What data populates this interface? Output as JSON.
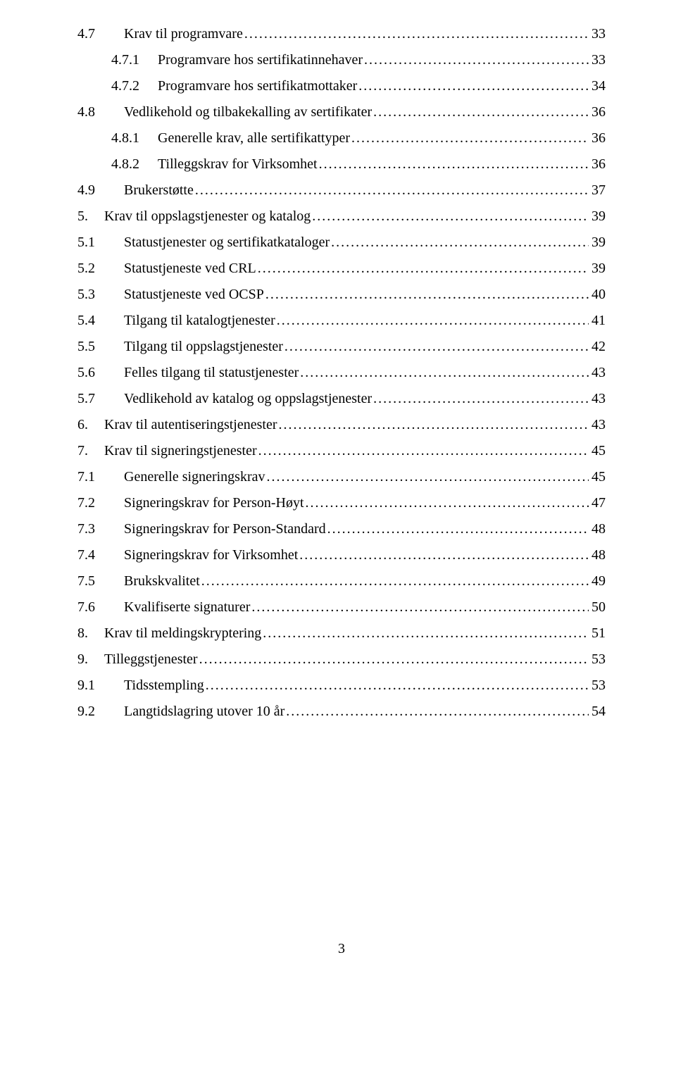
{
  "page_number": "3",
  "toc": [
    {
      "level": "lvl1",
      "num": "4.7",
      "title": "Krav til programvare",
      "page": "33"
    },
    {
      "level": "lvl2",
      "num": "4.7.1",
      "title": "Programvare hos sertifikatinnehaver",
      "page": "33"
    },
    {
      "level": "lvl2",
      "num": "4.7.2",
      "title": "Programvare hos sertifikatmottaker",
      "page": "34"
    },
    {
      "level": "lvl1",
      "num": "4.8",
      "title": "Vedlikehold og tilbakekalling av sertifikater",
      "page": "36"
    },
    {
      "level": "lvl2",
      "num": "4.8.1",
      "title": "Generelle krav, alle sertifikattyper",
      "page": "36"
    },
    {
      "level": "lvl2",
      "num": "4.8.2",
      "title": "Tilleggskrav for Virksomhet",
      "page": "36"
    },
    {
      "level": "lvl1",
      "num": "4.9",
      "title": "Brukerstøtte",
      "page": "37"
    },
    {
      "level": "lvl0",
      "num": "5.",
      "title": "Krav til oppslagstjenester og katalog",
      "page": "39"
    },
    {
      "level": "lvl1",
      "num": "5.1",
      "title": "Statustjenester og sertifikatkataloger",
      "page": "39"
    },
    {
      "level": "lvl1",
      "num": "5.2",
      "title": "Statustjeneste ved CRL",
      "page": "39"
    },
    {
      "level": "lvl1",
      "num": "5.3",
      "title": "Statustjeneste ved OCSP",
      "page": "40"
    },
    {
      "level": "lvl1",
      "num": "5.4",
      "title": "Tilgang til katalogtjenester",
      "page": "41"
    },
    {
      "level": "lvl1",
      "num": "5.5",
      "title": "Tilgang til oppslagstjenester",
      "page": "42"
    },
    {
      "level": "lvl1",
      "num": "5.6",
      "title": "Felles tilgang til statustjenester",
      "page": "43"
    },
    {
      "level": "lvl1",
      "num": "5.7",
      "title": "Vedlikehold av katalog og oppslagstjenester",
      "page": "43"
    },
    {
      "level": "lvl0",
      "num": "6.",
      "title": "Krav til autentiseringstjenester",
      "page": "43"
    },
    {
      "level": "lvl0",
      "num": "7.",
      "title": "Krav til signeringstjenester",
      "page": "45"
    },
    {
      "level": "lvl1",
      "num": "7.1",
      "title": "Generelle signeringskrav",
      "page": "45"
    },
    {
      "level": "lvl1",
      "num": "7.2",
      "title": "Signeringskrav for Person-Høyt",
      "page": "47"
    },
    {
      "level": "lvl1",
      "num": "7.3",
      "title": "Signeringskrav for Person-Standard",
      "page": "48"
    },
    {
      "level": "lvl1",
      "num": "7.4",
      "title": "Signeringskrav for Virksomhet",
      "page": "48"
    },
    {
      "level": "lvl1",
      "num": "7.5",
      "title": "Brukskvalitet",
      "page": "49"
    },
    {
      "level": "lvl1",
      "num": "7.6",
      "title": "Kvalifiserte signaturer",
      "page": "50"
    },
    {
      "level": "lvl0",
      "num": "8.",
      "title": "Krav til meldingskryptering",
      "page": "51"
    },
    {
      "level": "lvl0",
      "num": "9.",
      "title": "Tilleggstjenester",
      "page": "53"
    },
    {
      "level": "lvl1",
      "num": "9.1",
      "title": "Tidsstempling",
      "page": "53"
    },
    {
      "level": "lvl1",
      "num": "9.2",
      "title": "Langtidslagring utover 10 år",
      "page": "54"
    }
  ]
}
